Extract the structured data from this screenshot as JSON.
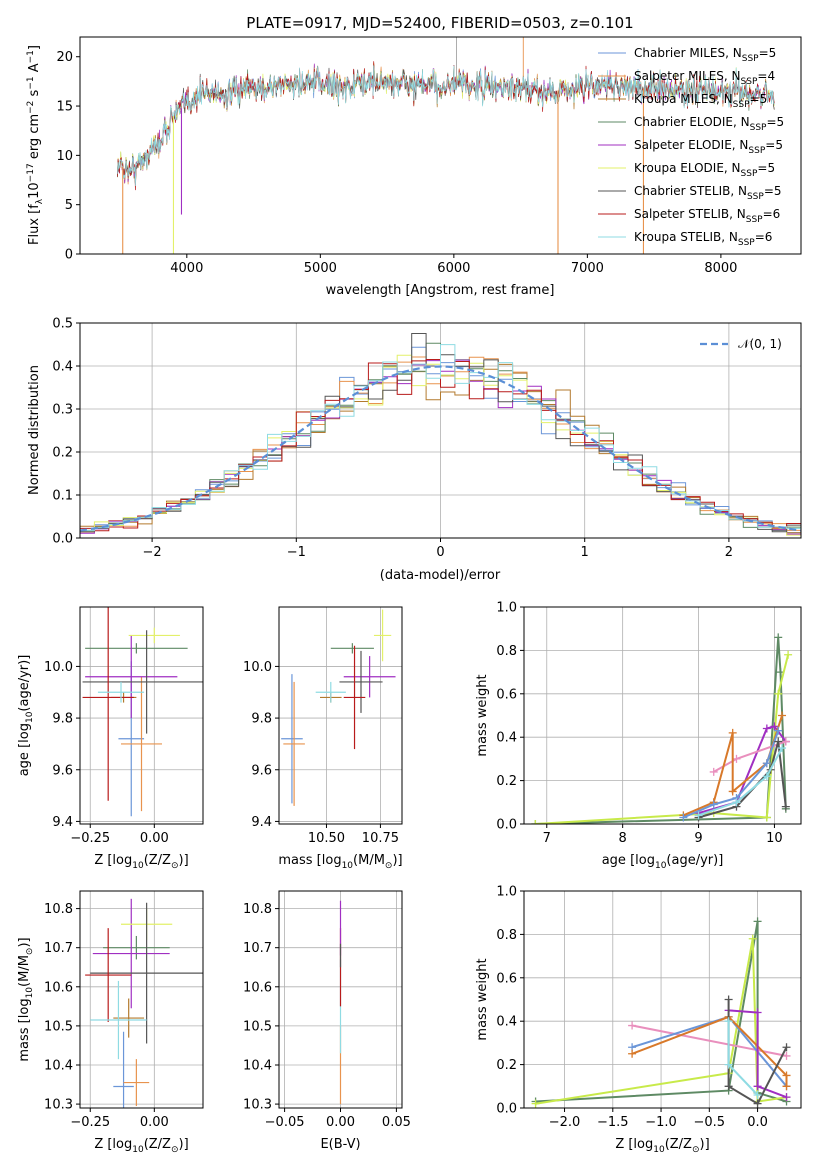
{
  "colors": {
    "Chabrier MILES": "#6b96d8",
    "Salpeter MILES": "#e8934e",
    "Kroupa MILES": "#b37a2e",
    "Chabrier ELODIE": "#5e8a64",
    "Salpeter ELODIE": "#a02fc2",
    "Kroupa ELODIE": "#e3f06a",
    "Chabrier STELIB": "#555555",
    "Salpeter STELIB": "#b81b1b",
    "Kroupa STELIB": "#8fdbe3",
    "normal_curve": "#5b8fd6",
    "pink": "#e98fbd",
    "lime": "#c8ea4a",
    "orange": "#d8792a"
  },
  "chart_data": [
    {
      "id": "spectrum",
      "type": "line",
      "title": "PLATE=0917, MJD=52400, FIBERID=0503, z=0.101",
      "xlabel": "wavelength [Angstrom, rest frame]",
      "ylabel": "Flux [f",
      "ylabel_sub": "λ",
      "ylabel_rest": "10",
      "ylabel_exp": "−17",
      "ylabel_units": " erg cm",
      "ylabel_units_exp": "−2",
      "ylabel_units2": " s",
      "ylabel_units2_exp": "−1",
      "ylabel_units3": " A",
      "ylabel_units3_exp": "−1",
      "ylabel_close": "]",
      "xlim": [
        3200,
        8600
      ],
      "ylim": [
        0,
        22
      ],
      "xticks": [
        4000,
        5000,
        6000,
        7000,
        8000
      ],
      "yticks": [
        0,
        5,
        10,
        15,
        20
      ],
      "legend_position": "right",
      "legend": [
        {
          "name": "Chabrier MILES, N",
          "sub": "SSP",
          "rest": "=5"
        },
        {
          "name": "Salpeter MILES, N",
          "sub": "SSP",
          "rest": "=4"
        },
        {
          "name": "Kroupa MILES, N",
          "sub": "SSP",
          "rest": "=5"
        },
        {
          "name": "Chabrier ELODIE, N",
          "sub": "SSP",
          "rest": "=5"
        },
        {
          "name": "Salpeter ELODIE, N",
          "sub": "SSP",
          "rest": "=5"
        },
        {
          "name": "Kroupa ELODIE, N",
          "sub": "SSP",
          "rest": "=5"
        },
        {
          "name": "Chabrier STELIB, N",
          "sub": "SSP",
          "rest": "=5"
        },
        {
          "name": "Salpeter STELIB, N",
          "sub": "SSP",
          "rest": "=6"
        },
        {
          "name": "Kroupa STELIB, N",
          "sub": "SSP",
          "rest": "=6"
        }
      ],
      "continuum": {
        "x": [
          3480,
          3600,
          3700,
          3800,
          3900,
          4000,
          4100,
          4200,
          4300,
          4400,
          4600,
          4800,
          5000,
          5200,
          5400,
          5600,
          5800,
          6000,
          6200,
          6400,
          6600,
          6800,
          7000,
          7200,
          7400,
          7600,
          7800,
          8000,
          8200,
          8400
        ],
        "y": [
          9.0,
          8.5,
          10.0,
          11.5,
          14.0,
          15.3,
          16.3,
          16.5,
          16.0,
          16.5,
          17.0,
          17.2,
          17.3,
          17.0,
          17.5,
          17.3,
          17.0,
          17.2,
          17.0,
          16.8,
          16.5,
          16.6,
          17.0,
          17.2,
          16.8,
          16.7,
          16.6,
          16.5,
          16.3,
          16.2
        ]
      },
      "drops": [
        {
          "x": 3520,
          "y": 0
        },
        {
          "x": 3900,
          "y": 0
        },
        {
          "x": 3960,
          "y": 4
        },
        {
          "x": 6780,
          "y": 0
        },
        {
          "x": 7420,
          "y": 0
        }
      ]
    },
    {
      "id": "residuals",
      "type": "area",
      "xlabel": "(data-model)/error",
      "ylabel": "Normed distribution",
      "xlim": [
        -2.5,
        2.5
      ],
      "ylim": [
        0,
        0.5
      ],
      "xticks": [
        -2,
        -1,
        0,
        1,
        2
      ],
      "xtick_labels": [
        "−2",
        "−1",
        "0",
        "1",
        "2"
      ],
      "yticks": [
        0.0,
        0.1,
        0.2,
        0.3,
        0.4,
        0.5
      ],
      "ytick_labels": [
        "0.0",
        "0.1",
        "0.2",
        "0.3",
        "0.4",
        "0.5"
      ],
      "legend_position": "top-right",
      "legend": [
        {
          "name": "𝒩(0, 1)"
        }
      ],
      "bin_width": 0.1
    },
    {
      "id": "age_vs_Z",
      "type": "scatter",
      "xlabel": "Z [log",
      "xlabel_sub": "10",
      "xlabel_rest": "(Z/Z",
      "xlabel_sub2": "⊙",
      "xlabel_close": ")]",
      "ylabel": "age  [log",
      "ylabel_sub": "10",
      "ylabel_rest": "(age/yr)]",
      "xlim": [
        -0.29,
        0.19
      ],
      "ylim": [
        9.39,
        10.23
      ],
      "xticks": [
        -0.25,
        0.0
      ],
      "xtick_labels": [
        "−0.25",
        "0.00"
      ],
      "yticks": [
        9.4,
        9.6,
        9.8,
        10.0
      ],
      "ytick_labels": [
        "9.4",
        "9.6",
        "9.8",
        "10.0"
      ],
      "points": [
        {
          "series": "Chabrier MILES",
          "x": -0.09,
          "y": 9.72,
          "xerr": 0.05,
          "yerr": 0.3
        },
        {
          "series": "Salpeter MILES",
          "x": -0.05,
          "y": 9.7,
          "xerr": 0.08,
          "yerr": 0.26
        },
        {
          "series": "Kroupa MILES",
          "x": -0.12,
          "y": 9.88,
          "xerr": 0.05,
          "yerr": 0.02
        },
        {
          "series": "Chabrier ELODIE",
          "x": -0.07,
          "y": 10.07,
          "xerr": 0.2,
          "yerr": 0.02
        },
        {
          "series": "Salpeter ELODIE",
          "x": -0.09,
          "y": 9.96,
          "xerr": 0.18,
          "yerr": 0.16
        },
        {
          "series": "Kroupa ELODIE",
          "x": 0.0,
          "y": 10.12,
          "xerr": 0.1,
          "yerr": 0.03
        },
        {
          "series": "Chabrier STELIB",
          "x": -0.03,
          "y": 9.94,
          "xerr": 0.25,
          "yerr": 0.2
        },
        {
          "series": "Salpeter STELIB",
          "x": -0.18,
          "y": 9.88,
          "xerr": 0.1,
          "yerr": 0.4
        },
        {
          "series": "Kroupa STELIB",
          "x": -0.13,
          "y": 9.9,
          "xerr": 0.09,
          "yerr": 0.04
        }
      ]
    },
    {
      "id": "age_vs_mass",
      "type": "scatter",
      "xlabel": "mass [log",
      "xlabel_sub": "10",
      "xlabel_rest": "(M/M",
      "xlabel_sub2": "⊙",
      "xlabel_close": ")]",
      "xlim": [
        10.28,
        10.85
      ],
      "ylim": [
        9.39,
        10.23
      ],
      "xticks": [
        10.5,
        10.75
      ],
      "xtick_labels": [
        "10.50",
        "10.75"
      ],
      "yticks": [
        9.4,
        9.6,
        9.8,
        10.0
      ],
      "ytick_labels": [
        "9.4",
        "9.6",
        "9.8",
        "10.0"
      ],
      "points": [
        {
          "series": "Chabrier MILES",
          "x": 10.34,
          "y": 9.72,
          "xerr": 0.05,
          "yerr": 0.25
        },
        {
          "series": "Salpeter MILES",
          "x": 10.35,
          "y": 9.7,
          "xerr": 0.05,
          "yerr": 0.24
        },
        {
          "series": "Kroupa MILES",
          "x": 10.52,
          "y": 9.88,
          "xerr": 0.05,
          "yerr": 0.02
        },
        {
          "series": "Chabrier ELODIE",
          "x": 10.62,
          "y": 10.07,
          "xerr": 0.1,
          "yerr": 0.02
        },
        {
          "series": "Salpeter ELODIE",
          "x": 10.7,
          "y": 9.96,
          "xerr": 0.12,
          "yerr": 0.08
        },
        {
          "series": "Kroupa ELODIE",
          "x": 10.76,
          "y": 10.12,
          "xerr": 0.04,
          "yerr": 0.1
        },
        {
          "series": "Chabrier STELIB",
          "x": 10.66,
          "y": 9.94,
          "xerr": 0.1,
          "yerr": 0.12
        },
        {
          "series": "Salpeter STELIB",
          "x": 10.63,
          "y": 9.88,
          "xerr": 0.05,
          "yerr": 0.2
        },
        {
          "series": "Kroupa STELIB",
          "x": 10.52,
          "y": 9.9,
          "xerr": 0.07,
          "yerr": 0.04
        }
      ]
    },
    {
      "id": "weight_vs_age",
      "type": "line",
      "xlabel": "age  [log",
      "xlabel_sub": "10",
      "xlabel_rest": "(age/yr)]",
      "ylabel": "mass weight",
      "xlim": [
        6.7,
        10.35
      ],
      "ylim": [
        0,
        1.0
      ],
      "xticks": [
        7,
        8,
        9,
        10
      ],
      "xtick_labels": [
        "7",
        "8",
        "9",
        "10"
      ],
      "yticks": [
        0,
        0.2,
        0.4,
        0.6,
        0.8,
        1.0
      ],
      "ytick_labels": [
        "0.0",
        "0.2",
        "0.4",
        "0.6",
        "0.8",
        "1.0"
      ],
      "series": [
        {
          "name": "Chabrier ELODIE",
          "color": "#5e8a64",
          "x": [
            6.85,
            9.9,
            10.05,
            10.08,
            10.15
          ],
          "y": [
            0.0,
            0.03,
            0.86,
            0.7,
            0.07
          ]
        },
        {
          "name": "Kroupa ELODIE",
          "color": "#c8ea4a",
          "x": [
            6.85,
            9.2,
            9.9,
            10.05,
            10.18
          ],
          "y": [
            0.0,
            0.05,
            0.03,
            0.6,
            0.78
          ]
        },
        {
          "name": "Salpeter ELODIE",
          "color": "#a02fc2",
          "x": [
            9.0,
            9.5,
            9.9,
            10.0,
            10.15
          ],
          "y": [
            0.05,
            0.1,
            0.44,
            0.45,
            0.38
          ]
        },
        {
          "name": "pink",
          "color": "#e98fbd",
          "x": [
            9.2,
            9.5,
            10.15
          ],
          "y": [
            0.24,
            0.3,
            0.38
          ]
        },
        {
          "name": "Salpeter MILES",
          "color": "#d8792a",
          "x": [
            8.8,
            9.2,
            9.45,
            9.45,
            9.9,
            10.1
          ],
          "y": [
            0.04,
            0.1,
            0.42,
            0.15,
            0.28,
            0.5
          ]
        },
        {
          "name": "Chabrier MILES",
          "color": "#6b96d8",
          "x": [
            8.8,
            9.2,
            9.5,
            9.9,
            10.05
          ],
          "y": [
            0.03,
            0.09,
            0.12,
            0.28,
            0.43
          ]
        },
        {
          "name": "Chabrier STELIB",
          "color": "#555555",
          "x": [
            9.0,
            9.5,
            9.95,
            10.05,
            10.15
          ],
          "y": [
            0.03,
            0.08,
            0.25,
            0.38,
            0.08
          ]
        },
        {
          "name": "Kroupa STELIB",
          "color": "#8fdbe3",
          "x": [
            9.0,
            9.5,
            9.9,
            10.1
          ],
          "y": [
            0.04,
            0.1,
            0.22,
            0.35
          ]
        }
      ]
    },
    {
      "id": "mass_vs_Z",
      "type": "scatter",
      "xlabel": "Z [log",
      "xlabel_sub": "10",
      "xlabel_rest": "(Z/Z",
      "xlabel_sub2": "⊙",
      "xlabel_close": ")]",
      "ylabel": "mass [log",
      "ylabel_sub": "10",
      "ylabel_rest": "(M/M",
      "ylabel_sub2": "⊙",
      "ylabel_close": ")]",
      "xlim": [
        -0.29,
        0.19
      ],
      "ylim": [
        10.29,
        10.845
      ],
      "xticks": [
        -0.25,
        0.0
      ],
      "xtick_labels": [
        "−0.25",
        "0.00"
      ],
      "yticks": [
        10.3,
        10.4,
        10.5,
        10.6,
        10.7,
        10.8
      ],
      "ytick_labels": [
        "10.3",
        "10.4",
        "10.5",
        "10.6",
        "10.7",
        "10.8"
      ],
      "points": [
        {
          "series": "Chabrier MILES",
          "x": -0.12,
          "y": 10.345,
          "xerr": 0.04,
          "yerr": 0.14
        },
        {
          "series": "Salpeter MILES",
          "x": -0.07,
          "y": 10.355,
          "xerr": 0.05,
          "yerr": 0.06
        },
        {
          "series": "Kroupa MILES",
          "x": -0.1,
          "y": 10.52,
          "xerr": 0.06,
          "yerr": 0.05
        },
        {
          "series": "Chabrier ELODIE",
          "x": -0.07,
          "y": 10.7,
          "xerr": 0.13,
          "yerr": 0.03
        },
        {
          "series": "Salpeter ELODIE",
          "x": -0.09,
          "y": 10.685,
          "xerr": 0.15,
          "yerr": 0.14
        },
        {
          "series": "Kroupa ELODIE",
          "x": -0.03,
          "y": 10.76,
          "xerr": 0.1,
          "yerr": 0.04
        },
        {
          "series": "Chabrier STELIB",
          "x": -0.03,
          "y": 10.635,
          "xerr": 0.22,
          "yerr": 0.18
        },
        {
          "series": "Salpeter STELIB",
          "x": -0.18,
          "y": 10.63,
          "xerr": 0.09,
          "yerr": 0.12
        },
        {
          "series": "Kroupa STELIB",
          "x": -0.14,
          "y": 10.515,
          "xerr": 0.11,
          "yerr": 0.1
        }
      ]
    },
    {
      "id": "mass_vs_ebv",
      "type": "scatter",
      "xlabel": "E(B-V)",
      "xlim": [
        -0.055,
        0.055
      ],
      "ylim": [
        10.29,
        10.845
      ],
      "xticks": [
        -0.05,
        0.0,
        0.05
      ],
      "xtick_labels": [
        "−0.05",
        "0.00",
        "0.05"
      ],
      "yticks": [
        10.3,
        10.4,
        10.5,
        10.6,
        10.7,
        10.8
      ],
      "ytick_labels": [
        "10.3",
        "10.4",
        "10.5",
        "10.6",
        "10.7",
        "10.8"
      ],
      "points": [
        {
          "series": "Salpeter MILES",
          "x": 0.0,
          "y": 10.4,
          "xerr": 0.0,
          "yerr": 0.1
        },
        {
          "series": "Kroupa STELIB",
          "x": 0.0,
          "y": 10.55,
          "xerr": 0.0,
          "yerr": 0.12
        },
        {
          "series": "Salpeter STELIB",
          "x": 0.0,
          "y": 10.65,
          "xerr": 0.0,
          "yerr": 0.1
        },
        {
          "series": "Salpeter ELODIE",
          "x": 0.0,
          "y": 10.75,
          "xerr": 0.0,
          "yerr": 0.07
        },
        {
          "series": "Chabrier STELIB",
          "x": 0.0,
          "y": 10.68,
          "xerr": 0.0,
          "yerr": 0.03
        }
      ]
    },
    {
      "id": "weight_vs_Z",
      "type": "line",
      "xlabel": "Z [log",
      "xlabel_sub": "10",
      "xlabel_rest": "(Z/Z",
      "xlabel_sub2": "⊙",
      "xlabel_close": ")]",
      "ylabel": "mass weight",
      "xlim": [
        -2.42,
        0.45
      ],
      "ylim": [
        0,
        1.0
      ],
      "xticks": [
        -2.0,
        -1.5,
        -1.0,
        -0.5,
        0.0
      ],
      "xtick_labels": [
        "−2.0",
        "−1.5",
        "−1.0",
        "−0.5",
        "0.0"
      ],
      "yticks": [
        0,
        0.2,
        0.4,
        0.6,
        0.8,
        1.0
      ],
      "ytick_labels": [
        "0.0",
        "0.2",
        "0.4",
        "0.6",
        "0.8",
        "1.0"
      ],
      "series": [
        {
          "name": "Chabrier ELODIE",
          "color": "#5e8a64",
          "x": [
            -2.3,
            -0.3,
            0.0,
            0.0,
            0.3
          ],
          "y": [
            0.03,
            0.08,
            0.86,
            0.07,
            0.03
          ]
        },
        {
          "name": "Kroupa ELODIE",
          "color": "#c8ea4a",
          "x": [
            -2.3,
            -0.3,
            -0.05,
            0.0,
            0.3
          ],
          "y": [
            0.02,
            0.16,
            0.78,
            0.03,
            0.05
          ]
        },
        {
          "name": "pink",
          "color": "#e98fbd",
          "x": [
            -1.3,
            0.3
          ],
          "y": [
            0.38,
            0.24
          ]
        },
        {
          "name": "Chabrier MILES",
          "color": "#6b96d8",
          "x": [
            -1.3,
            -0.3,
            0.3
          ],
          "y": [
            0.28,
            0.42,
            0.1
          ]
        },
        {
          "name": "Salpeter MILES",
          "color": "#d8792a",
          "x": [
            -1.3,
            -0.3,
            0.3,
            0.3
          ],
          "y": [
            0.25,
            0.42,
            0.15,
            0.1
          ]
        },
        {
          "name": "Salpeter ELODIE",
          "color": "#a02fc2",
          "x": [
            -0.3,
            0.0,
            0.0,
            0.3
          ],
          "y": [
            0.45,
            0.44,
            0.1,
            0.05
          ]
        },
        {
          "name": "Chabrier STELIB",
          "color": "#555555",
          "x": [
            -0.3,
            -0.3,
            0.0,
            0.3
          ],
          "y": [
            0.5,
            0.1,
            0.02,
            0.28
          ]
        },
        {
          "name": "Kroupa STELIB",
          "color": "#8fdbe3",
          "x": [
            -0.3,
            -0.3,
            0.0
          ],
          "y": [
            0.4,
            0.2,
            0.06
          ]
        }
      ]
    }
  ]
}
